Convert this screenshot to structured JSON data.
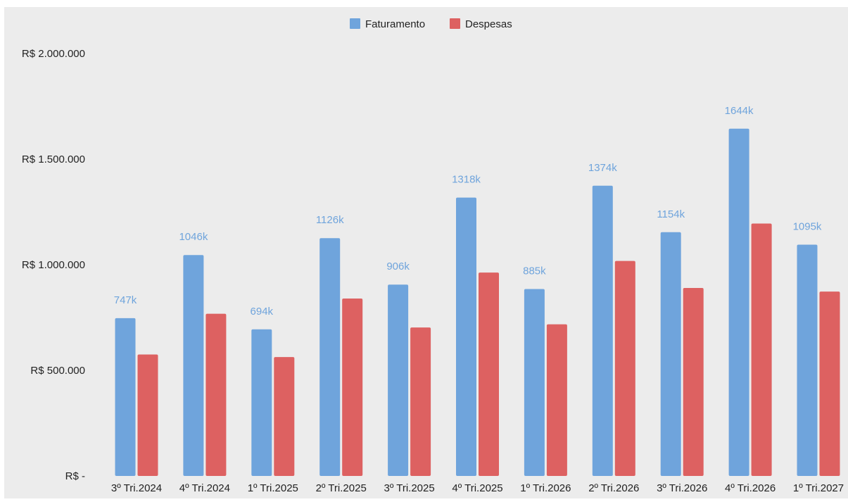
{
  "colors": {
    "background": "#ffffff",
    "plot_background": "#ececec",
    "faturamento": "#6fa4dc",
    "despesas": "#dd6161",
    "axis_text": "#222222",
    "label_text": "#6fa4dc"
  },
  "chart_data": {
    "type": "bar",
    "title": "",
    "xlabel": "",
    "ylabel": "",
    "legend_position": "top-center",
    "grid": false,
    "ylim": [
      0,
      2000000
    ],
    "y_ticks": [
      0,
      500000,
      1000000,
      1500000,
      2000000
    ],
    "y_tick_labels": [
      "R$ -",
      "R$ 500.000",
      "R$ 1.000.000",
      "R$ 1.500.000",
      "R$ 2.000.000"
    ],
    "categories": [
      "3º Tri.2024",
      "4º Tri.2024",
      "1º Tri.2025",
      "2º Tri.2025",
      "3º Tri.2025",
      "4º Tri.2025",
      "1º Tri.2026",
      "2º Tri.2026",
      "3º Tri.2026",
      "4º Tri.2026",
      "1º Tri.2027"
    ],
    "series": [
      {
        "name": "Faturamento",
        "color": "#6fa4dc",
        "values": [
          747000,
          1046000,
          694000,
          1126000,
          906000,
          1318000,
          885000,
          1374000,
          1154000,
          1644000,
          1095000
        ],
        "data_labels": [
          "747k",
          "1046k",
          "694k",
          "1126k",
          "906k",
          "1318k",
          "885k",
          "1374k",
          "1154k",
          "1644k",
          "1095k"
        ]
      },
      {
        "name": "Despesas",
        "color": "#dd6161",
        "values": [
          575000,
          768000,
          563000,
          840000,
          703000,
          963000,
          718000,
          1018000,
          890000,
          1195000,
          873000
        ]
      }
    ]
  }
}
